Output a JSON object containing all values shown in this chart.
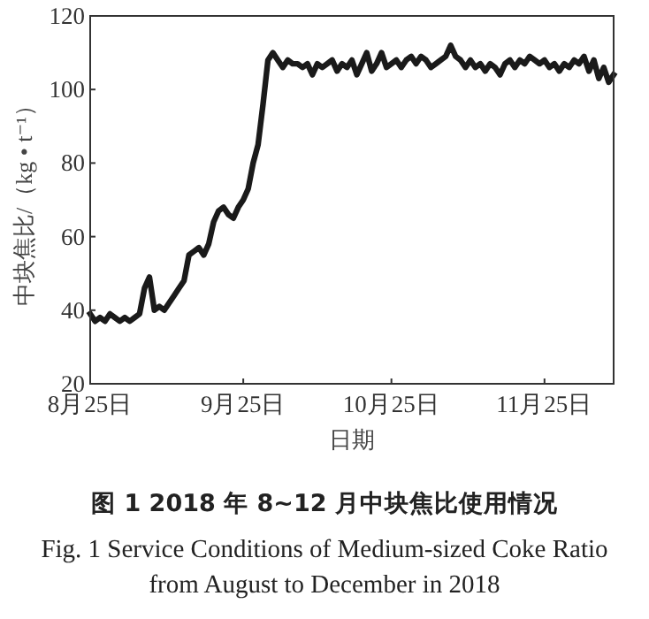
{
  "chart_data": {
    "type": "line",
    "title": "图 1  2018 年 8~12 月中块焦比使用情况",
    "subtitle": "Fig. 1  Service Conditions of Medium-sized Coke Ratio from August to December in 2018",
    "xlabel": "日期",
    "ylabel": "中块焦比/（kg • t⁻¹）",
    "x": [
      "2018-08-25",
      "2018-08-26",
      "2018-08-27",
      "2018-08-28",
      "2018-08-29",
      "2018-08-30",
      "2018-08-31",
      "2018-09-01",
      "2018-09-02",
      "2018-09-03",
      "2018-09-04",
      "2018-09-05",
      "2018-09-06",
      "2018-09-07",
      "2018-09-08",
      "2018-09-09",
      "2018-09-10",
      "2018-09-11",
      "2018-09-12",
      "2018-09-13",
      "2018-09-14",
      "2018-09-15",
      "2018-09-16",
      "2018-09-17",
      "2018-09-18",
      "2018-09-19",
      "2018-09-20",
      "2018-09-21",
      "2018-09-22",
      "2018-09-23",
      "2018-09-24",
      "2018-09-25",
      "2018-09-26",
      "2018-09-27",
      "2018-09-28",
      "2018-09-29",
      "2018-09-30",
      "2018-10-01",
      "2018-10-02",
      "2018-10-03",
      "2018-10-04",
      "2018-10-05",
      "2018-10-06",
      "2018-10-07",
      "2018-10-08",
      "2018-10-09",
      "2018-10-10",
      "2018-10-11",
      "2018-10-12",
      "2018-10-13",
      "2018-10-14",
      "2018-10-15",
      "2018-10-16",
      "2018-10-17",
      "2018-10-18",
      "2018-10-19",
      "2018-10-20",
      "2018-10-21",
      "2018-10-22",
      "2018-10-23",
      "2018-10-24",
      "2018-10-25",
      "2018-10-26",
      "2018-10-27",
      "2018-10-28",
      "2018-10-29",
      "2018-10-30",
      "2018-10-31",
      "2018-11-01",
      "2018-11-02",
      "2018-11-03",
      "2018-11-04",
      "2018-11-05",
      "2018-11-06",
      "2018-11-07",
      "2018-11-08",
      "2018-11-09",
      "2018-11-10",
      "2018-11-11",
      "2018-11-12",
      "2018-11-13",
      "2018-11-14",
      "2018-11-15",
      "2018-11-16",
      "2018-11-17",
      "2018-11-18",
      "2018-11-19",
      "2018-11-20",
      "2018-11-21",
      "2018-11-22",
      "2018-11-23",
      "2018-11-24",
      "2018-11-25",
      "2018-11-26",
      "2018-11-27",
      "2018-11-28",
      "2018-11-29",
      "2018-11-30",
      "2018-12-01",
      "2018-12-02",
      "2018-12-03",
      "2018-12-04",
      "2018-12-05",
      "2018-12-06",
      "2018-12-07",
      "2018-12-08",
      "2018-12-09"
    ],
    "series": [
      {
        "color": "#1a1a1a",
        "values": [
          39,
          37,
          38,
          37,
          39,
          38,
          37,
          38,
          37,
          38,
          39,
          46,
          49,
          40,
          41,
          40,
          42,
          44,
          46,
          48,
          55,
          56,
          57,
          55,
          58,
          64,
          67,
          68,
          66,
          65,
          68,
          70,
          73,
          80,
          85,
          96,
          108,
          110,
          108,
          106,
          108,
          107,
          107,
          106,
          107,
          104,
          107,
          106,
          107,
          108,
          105,
          107,
          106,
          108,
          104,
          107,
          110,
          105,
          107,
          110,
          106,
          107,
          108,
          106,
          108,
          109,
          107,
          109,
          108,
          106,
          107,
          108,
          109,
          112,
          109,
          108,
          106,
          108,
          106,
          107,
          105,
          107,
          106,
          104,
          107,
          108,
          106,
          108,
          107,
          109,
          108,
          107,
          108,
          106,
          107,
          105,
          107,
          106,
          108,
          107,
          109,
          105,
          108,
          103,
          106,
          102,
          104
        ]
      }
    ],
    "xlim": [
      "2018-08-25",
      "2018-12-09"
    ],
    "xticks": [
      {
        "value": "2018-08-25",
        "label": "8月25日"
      },
      {
        "value": "2018-09-25",
        "label": "9月25日"
      },
      {
        "value": "2018-10-25",
        "label": "10月25日"
      },
      {
        "value": "2018-11-25",
        "label": "11月25日"
      }
    ],
    "ylim": [
      20,
      120
    ],
    "yticks": [
      20,
      40,
      60,
      80,
      100,
      120
    ],
    "grid": false
  }
}
